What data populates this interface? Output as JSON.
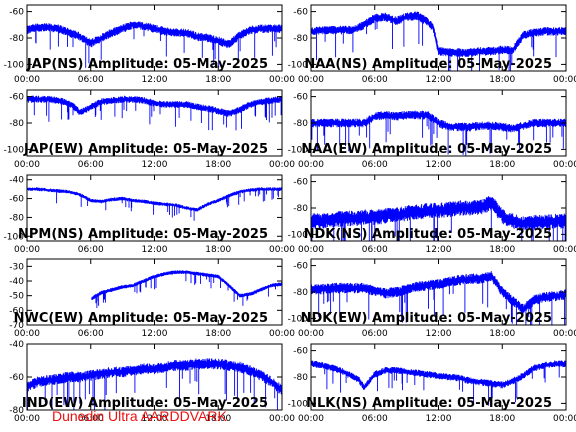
{
  "footer": "Dunedin Ultra AARDDVARK",
  "colors": {
    "trace": "#0000ff",
    "footer": "#ee1111",
    "axis": "#000000"
  },
  "chart_data": [
    {
      "type": "line",
      "title": "JAP(NS) Amplitude: 05-May-2025",
      "ylim": [
        -105,
        -55
      ],
      "yticks": [
        -60,
        -80,
        -100
      ],
      "xticks": [
        "00:00",
        "06:00",
        "12:00",
        "18:00",
        "00:00"
      ],
      "xlim": [
        0,
        24
      ],
      "series": [
        {
          "x": [
            0,
            1,
            2,
            3,
            4,
            5,
            6,
            7,
            8,
            9,
            10,
            11,
            12,
            13,
            14,
            15,
            16,
            17,
            18,
            19,
            20,
            21,
            22,
            23,
            24
          ],
          "y": [
            -74,
            -72,
            -72,
            -73,
            -76,
            -79,
            -84,
            -80,
            -76,
            -73,
            -70,
            -71,
            -73,
            -75,
            -76,
            -76,
            -79,
            -80,
            -82,
            -85,
            -78,
            -74,
            -73,
            -73,
            -73
          ],
          "spread": 5
        }
      ]
    },
    {
      "type": "line",
      "title": "NAA(NS) Amplitude: 05-May-2025",
      "ylim": [
        -105,
        -55
      ],
      "yticks": [
        -60,
        -80,
        -100
      ],
      "xticks": [
        "00:00",
        "06:00",
        "12:00",
        "18:00",
        "00:00"
      ],
      "xlim": [
        0,
        24
      ],
      "series": [
        {
          "x": [
            0,
            1,
            2,
            3,
            4,
            5,
            6,
            7,
            8,
            9,
            10,
            11,
            11.5,
            12,
            13,
            14,
            15,
            16,
            17,
            18,
            19,
            20,
            21,
            22,
            23,
            24
          ],
          "y": [
            -75,
            -74,
            -74,
            -74,
            -74,
            -70,
            -65,
            -64,
            -67,
            -64,
            -63,
            -68,
            -72,
            -90,
            -91,
            -91,
            -91,
            -90,
            -90,
            -89,
            -89,
            -78,
            -76,
            -75,
            -75,
            -75
          ],
          "spread": 5
        }
      ]
    },
    {
      "type": "line",
      "title": "JAP(EW) Amplitude: 05-May-2025",
      "ylim": [
        -105,
        -55
      ],
      "yticks": [
        -60,
        -80,
        -100
      ],
      "xticks": [
        "00:00",
        "06:00",
        "12:00",
        "18:00",
        "00:00"
      ],
      "xlim": [
        0,
        24
      ],
      "series": [
        {
          "x": [
            0,
            1,
            2,
            3,
            4,
            5,
            6,
            7,
            8,
            9,
            10,
            11,
            12,
            13,
            14,
            15,
            16,
            17,
            18,
            19,
            20,
            21,
            22,
            23,
            24
          ],
          "y": [
            -62,
            -62,
            -62,
            -63,
            -65,
            -72,
            -68,
            -64,
            -63,
            -62,
            -62,
            -63,
            -65,
            -66,
            -66,
            -66,
            -68,
            -69,
            -71,
            -73,
            -70,
            -66,
            -64,
            -63,
            -62
          ],
          "spread": 4
        }
      ]
    },
    {
      "type": "line",
      "title": "NAA(EW) Amplitude: 05-May-2025",
      "ylim": [
        -105,
        -55
      ],
      "yticks": [
        -60,
        -80,
        -100
      ],
      "xticks": [
        "00:00",
        "06:00",
        "12:00",
        "18:00",
        "00:00"
      ],
      "xlim": [
        0,
        24
      ],
      "series": [
        {
          "x": [
            0,
            1,
            2,
            3,
            4,
            5,
            6,
            7,
            8,
            9,
            10,
            11,
            12,
            13,
            14,
            15,
            16,
            17,
            18,
            19,
            20,
            21,
            22,
            23,
            24
          ],
          "y": [
            -80,
            -80,
            -80,
            -80,
            -80,
            -80,
            -75,
            -74,
            -75,
            -74,
            -74,
            -74,
            -80,
            -83,
            -83,
            -83,
            -82,
            -82,
            -83,
            -84,
            -82,
            -80,
            -80,
            -80,
            -80
          ],
          "spread": 5
        }
      ]
    },
    {
      "type": "line",
      "title": "NPM(NS) Amplitude: 05-May-2025",
      "ylim": [
        -105,
        -35
      ],
      "yticks": [
        -40,
        -60,
        -80,
        -100
      ],
      "xticks": [
        "00:00",
        "06:00",
        "12:00",
        "18:00",
        "00:00"
      ],
      "xlim": [
        0,
        24
      ],
      "series": [
        {
          "x": [
            0,
            1,
            2,
            3,
            4,
            5,
            6,
            7,
            8,
            9,
            10,
            11,
            12,
            13,
            14,
            15,
            16,
            17,
            18,
            19,
            20,
            21,
            22,
            23,
            24
          ],
          "y": [
            -50,
            -50,
            -51,
            -52,
            -53,
            -56,
            -62,
            -63,
            -61,
            -60,
            -62,
            -63,
            -65,
            -66,
            -67,
            -70,
            -72,
            -66,
            -62,
            -57,
            -53,
            -51,
            -50,
            -50,
            -50
          ],
          "spread": 3
        }
      ]
    },
    {
      "type": "line",
      "title": "NDK(NS) Amplitude: 05-May-2025",
      "ylim": [
        -105,
        -55
      ],
      "yticks": [
        -60,
        -80,
        -100
      ],
      "xticks": [
        "00:00",
        "06:00",
        "12:00",
        "18:00",
        "00:00"
      ],
      "xlim": [
        0,
        24
      ],
      "series": [
        {
          "x": [
            0,
            1,
            2,
            3,
            4,
            5,
            6,
            7,
            8,
            9,
            10,
            11,
            12,
            13,
            14,
            15,
            16,
            17,
            18,
            19,
            20,
            21,
            22,
            23,
            24
          ],
          "y": [
            -90,
            -90,
            -89,
            -88,
            -88,
            -87,
            -87,
            -86,
            -85,
            -84,
            -83,
            -82,
            -82,
            -81,
            -80,
            -80,
            -79,
            -76,
            -86,
            -90,
            -92,
            -91,
            -91,
            -90,
            -90
          ],
          "spread": 9
        }
      ]
    },
    {
      "type": "line",
      "title": "NWC(EW) Amplitude: 05-May-2025",
      "ylim": [
        -70,
        -25
      ],
      "yticks": [
        -30,
        -40,
        -50,
        -60,
        -70
      ],
      "xticks": [
        "00:00",
        "06:00",
        "12:00",
        "18:00",
        "00:00"
      ],
      "xlim": [
        0,
        24
      ],
      "series": [
        {
          "x": [
            6.1,
            6.5,
            7,
            8,
            9,
            10,
            11,
            12,
            13,
            14,
            15,
            16,
            17,
            18,
            19,
            20,
            21,
            22,
            23,
            24
          ],
          "y": [
            -52,
            -50,
            -48,
            -46,
            -44,
            -43,
            -40,
            -37,
            -35,
            -34,
            -34,
            -35,
            -36,
            -37,
            -43,
            -50,
            -49,
            -46,
            -43,
            -42
          ],
          "spread": 2
        }
      ]
    },
    {
      "type": "line",
      "title": "NDK(EW) Amplitude: 05-May-2025",
      "ylim": [
        -105,
        -55
      ],
      "yticks": [
        -60,
        -80,
        -100
      ],
      "xticks": [
        "00:00",
        "06:00",
        "12:00",
        "18:00",
        "00:00"
      ],
      "xlim": [
        0,
        24
      ],
      "series": [
        {
          "x": [
            0,
            1,
            2,
            3,
            4,
            5,
            6,
            7,
            8,
            9,
            10,
            11,
            12,
            13,
            14,
            15,
            16,
            17,
            18,
            19,
            20,
            21,
            22,
            23,
            24
          ],
          "y": [
            -78,
            -78,
            -77,
            -77,
            -77,
            -77,
            -79,
            -81,
            -80,
            -78,
            -76,
            -75,
            -74,
            -72,
            -71,
            -70,
            -70,
            -68,
            -80,
            -87,
            -93,
            -86,
            -84,
            -83,
            -82
          ],
          "spread": 6
        }
      ]
    },
    {
      "type": "line",
      "title": "IND(EW) Amplitude: 05-May-2025",
      "ylim": [
        -80,
        -40
      ],
      "yticks": [
        -40,
        -60,
        -80
      ],
      "xticks": [
        "00:00",
        "06:00",
        "12:00",
        "18:00",
        "00:00"
      ],
      "xlim": [
        0,
        24
      ],
      "series": [
        {
          "x": [
            0,
            1,
            2,
            3,
            4,
            5,
            6,
            7,
            8,
            9,
            10,
            11,
            12,
            13,
            14,
            15,
            16,
            17,
            18,
            19,
            20,
            21,
            22,
            23,
            24
          ],
          "y": [
            -66,
            -63,
            -62,
            -61,
            -60,
            -60,
            -59,
            -58,
            -57,
            -57,
            -56,
            -55,
            -55,
            -54,
            -53,
            -53,
            -52,
            -52,
            -52,
            -53,
            -54,
            -56,
            -59,
            -63,
            -68
          ],
          "spread": 5
        }
      ]
    },
    {
      "type": "line",
      "title": "NLK(NS) Amplitude: 05-May-2025",
      "ylim": [
        -105,
        -55
      ],
      "yticks": [
        -60,
        -80,
        -100
      ],
      "xticks": [
        "00:00",
        "06:00",
        "12:00",
        "18:00",
        "00:00"
      ],
      "xlim": [
        0,
        24
      ],
      "series": [
        {
          "x": [
            0,
            1,
            2,
            3,
            4,
            4.5,
            5,
            6,
            7,
            8,
            9,
            10,
            11,
            12,
            13,
            14,
            15,
            16,
            17,
            18,
            19,
            20,
            21,
            22,
            23,
            24
          ],
          "y": [
            -70,
            -71,
            -73,
            -76,
            -80,
            -82,
            -88,
            -78,
            -75,
            -75,
            -76,
            -77,
            -78,
            -79,
            -80,
            -81,
            -83,
            -84,
            -85,
            -86,
            -83,
            -79,
            -73,
            -71,
            -70,
            -70
          ],
          "spread": 4
        }
      ]
    }
  ]
}
